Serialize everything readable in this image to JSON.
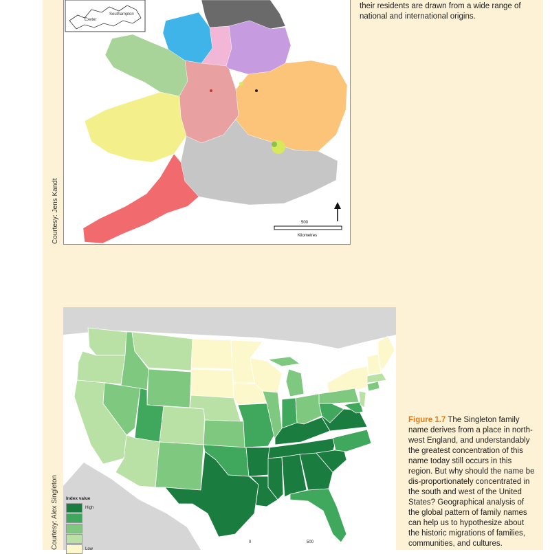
{
  "top_text": "their residents are drawn from a wide range of national and international origins.",
  "figure_a": {
    "courtesy": "Courtesy: Jens Kandt",
    "scale_value": "500",
    "scale_unit": "Kilometres",
    "inset_labels": [
      "Exeter",
      "Southampton"
    ],
    "colors": {
      "southwest": "#f06a6e",
      "wales_south": "#f3f08c",
      "wales_north": "#a8d49a",
      "midlands_west": "#e8a0a0",
      "northwest": "#3fb4e8",
      "northeast": "#6a6a6a",
      "yorkshire": "#c79be0",
      "east": "#fcc478",
      "south": "#c6c6c6",
      "pink": "#f2b6d6"
    }
  },
  "figure_b": {
    "courtesy": "Courtesy: Alex Singleton",
    "legend_title": "Index value",
    "legend": [
      {
        "label": "High",
        "color": "#1a7d3f"
      },
      {
        "label": "",
        "color": "#3fa85c"
      },
      {
        "label": "",
        "color": "#7fc87f"
      },
      {
        "label": "",
        "color": "#b9e0a5"
      },
      {
        "label": "Low",
        "color": "#fdf8cc"
      }
    ],
    "scale_labels": [
      "0",
      "500"
    ],
    "caption_label": "Figure 1.7",
    "caption_text": "The Singleton family name derives from a place in north-west England, and understandably the greatest concentration of this name today still occurs in this region. But why should the name be dis-proportionately concentrated in the south and west of the United States? Geographical analysis of the global pattern of family names can help us to hypothesize about the historic migrations of families, communities, and cultures."
  }
}
